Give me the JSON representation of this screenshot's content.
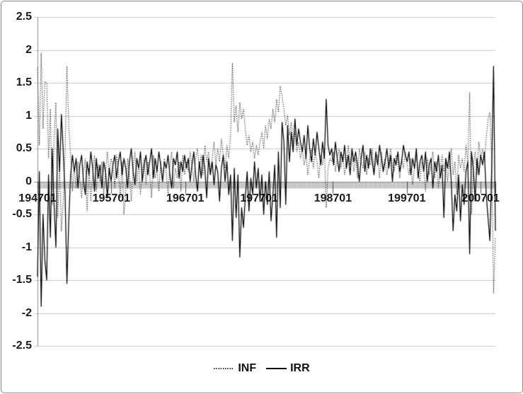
{
  "figure": {
    "background": "#ffffff",
    "border_color": "#8c8c8c"
  },
  "chart_data": {
    "type": "line",
    "title": "",
    "xlabel": "",
    "ylabel": "",
    "ylim": [
      -2.5,
      2.5
    ],
    "y_tick_step": 0.5,
    "grid": "horizontal",
    "y_tick_labels": [
      "2.5",
      "2",
      "1.5",
      "1",
      "0.5",
      "0",
      "-0.5",
      "-1",
      "-1.5",
      "-2",
      "-2.5"
    ],
    "y_tick_values": [
      2.5,
      2,
      1.5,
      1,
      0.5,
      0,
      -0.5,
      -1,
      -1.5,
      -2,
      -2.5
    ],
    "x_tick_labels": [
      "194701",
      "195701",
      "196701",
      "197701",
      "198701",
      "199701",
      "200701"
    ],
    "x_tick_months": [
      0,
      120,
      240,
      360,
      480,
      600,
      720
    ],
    "x_total_months": 744,
    "colors": {
      "gridline": "#c9c9c9",
      "zero_axis": "#8c8c8c",
      "tick_band": "#8a8a8a",
      "major_tick": "#4d4d4d",
      "series_line": "#000000"
    },
    "legend": {
      "position": "bottom",
      "entries": [
        {
          "name": "INF",
          "style": "dotted"
        },
        {
          "name": "IRR",
          "style": "solid"
        }
      ]
    },
    "series": [
      {
        "name": "INF",
        "line": "dotted",
        "color": "#1a1a1a",
        "values": [
          1.73,
          0.55,
          1.95,
          0.8,
          1.52,
          1.5,
          0.35,
          1.1,
          -0.35,
          0.65,
          1.2,
          -0.55,
          0.25,
          -0.76,
          -0.3,
          0.45,
          1.75,
          0.85,
          0.4,
          -0.15,
          0.2,
          -0.1,
          0.3,
          0.05,
          -0.25,
          0.15,
          0.35,
          -0.45,
          0.2,
          -0.3,
          0.1,
          0.4,
          -0.15,
          0.25,
          0,
          0.3,
          -0.2,
          0.15,
          0.45,
          0.1,
          0.35,
          0.25,
          -0.1,
          0.4,
          0.15,
          -0.25,
          0.3,
          -0.5,
          -0.15,
          0.35,
          0.1,
          -0.3,
          0.2,
          0.45,
          0,
          0.25,
          -0.2,
          0.15,
          0.35,
          -0.05,
          0.3,
          0.1,
          -0.25,
          0.4,
          0.05,
          0.2,
          -0.15,
          0.3,
          0,
          0.35,
          0.15,
          -0.2,
          0.25,
          0.45,
          -0.1,
          0.2,
          0.05,
          0.3,
          -0.15,
          0.4,
          0.1,
          0.3,
          0.15,
          0.45,
          0.25,
          0,
          0.35,
          0.5,
          0.2,
          0.4,
          0.1,
          0.55,
          0.3,
          0.45,
          0.15,
          0.35,
          0.6,
          0.25,
          0.5,
          0.3,
          0.65,
          0.4,
          0.2,
          0.55,
          0.35,
          0.7,
          1.8,
          0.9,
          1.15,
          0.75,
          1.2,
          0.95,
          1.1,
          0.8,
          0.55,
          0.7,
          0.45,
          0.6,
          0.35,
          0.55,
          0.4,
          0.6,
          0.75,
          0.5,
          0.85,
          0.65,
          0.95,
          0.8,
          1.1,
          0.9,
          1.25,
          1.05,
          1.45,
          1.3,
          1.1,
          0.85,
          1,
          0.7,
          0.9,
          0.55,
          0.75,
          0.45,
          0.6,
          0.35,
          0.5,
          0.25,
          0.4,
          0.1,
          0.35,
          0.5,
          0.2,
          0.45,
          0.3,
          0.05,
          0.4,
          0.25,
          0.5,
          -0.4,
          0.2,
          0.35,
          0.3,
          0.45,
          0.15,
          0.35,
          0.5,
          0.2,
          0.4,
          0.1,
          0.3,
          0.55,
          0.25,
          0.45,
          0.15,
          0.35,
          0.05,
          0.5,
          0.3,
          0.2,
          0.45,
          0.1,
          0.35,
          0.25,
          0.5,
          0.15,
          0.3,
          0.4,
          0.05,
          0.45,
          0.2,
          0.35,
          0.1,
          0.3,
          0.5,
          0.25,
          0.15,
          0.4,
          0.3,
          0.05,
          0.35,
          0.2,
          0.45,
          0.25,
          0.1,
          0.35,
          -0.05,
          0.2,
          0.4,
          0.15,
          0,
          0.3,
          0.2,
          -0.15,
          0.35,
          0.1,
          0.25,
          0.45,
          0.05,
          0.3,
          -0.1,
          0.2,
          0.4,
          0.15,
          0.35,
          0,
          0.25,
          0.5,
          0.1,
          0.3,
          -0.2,
          0.4,
          0.2,
          0.35,
          0.15,
          0.55,
          0.3,
          1.35,
          -0.5,
          0.25,
          0.45,
          0.1,
          0.6,
          0.35,
          0.5,
          0.3,
          0.65,
          0.95,
          1.05,
          0.35,
          -1.7,
          -0.85
        ]
      },
      {
        "name": "IRR",
        "line": "solid",
        "color": "#000000",
        "values": [
          -1.45,
          0.15,
          -1.9,
          -0.5,
          -1.2,
          -1.5,
          0.1,
          -0.85,
          0.5,
          -0.35,
          -1,
          0.8,
          0.15,
          1.02,
          0.45,
          -0.2,
          -1.55,
          -0.6,
          0.1,
          0.4,
          0.15,
          0.35,
          -0.1,
          0.25,
          0.4,
          0,
          -0.2,
          0.3,
          0.1,
          0.45,
          0.2,
          -0.15,
          0.35,
          0.05,
          0.25,
          -0.1,
          0.3,
          0.15,
          -0.25,
          0.2,
          0,
          0.25,
          0.4,
          0.05,
          0.3,
          0.45,
          0.1,
          0.35,
          0.2,
          -0.1,
          0.3,
          0.5,
          0.15,
          -0.05,
          0.35,
          0.2,
          0.45,
          0,
          0.25,
          0.4,
          0.1,
          0.3,
          0.5,
          0.05,
          0.35,
          0.15,
          0.45,
          0.25,
          0,
          0.3,
          0.2,
          0.4,
          0.1,
          -0.1,
          0.35,
          0.25,
          0.45,
          0.05,
          0.3,
          0.15,
          0.4,
          0.2,
          0.35,
          0,
          0.25,
          0.45,
          0.1,
          -0.15,
          0.3,
          0.05,
          0.4,
          0.2,
          -0.25,
          0.35,
          0.1,
          0.3,
          -0.05,
          0.25,
          0.15,
          -0.3,
          0.2,
          0.4,
          0,
          0.3,
          -0.2,
          0.1,
          -0.9,
          0.2,
          -0.55,
          0.1,
          -1.15,
          -0.4,
          -0.7,
          -0.25,
          0.15,
          -0.45,
          0.05,
          -0.2,
          0.3,
          -0.1,
          0.2,
          -0.3,
          0.1,
          -0.5,
          0,
          -0.35,
          0.15,
          -0.6,
          -0.2,
          0.25,
          -0.85,
          0.45,
          -0.4,
          0.9,
          0.6,
          -0.35,
          0.85,
          0.3,
          0.75,
          0.45,
          0.95,
          0.55,
          0.8,
          0.6,
          0.45,
          0.7,
          0.35,
          0.85,
          0.5,
          0.3,
          0.65,
          0.4,
          0.75,
          0.5,
          0.25,
          0.6,
          0.35,
          1.25,
          0.55,
          0.4,
          0.5,
          0.25,
          0.6,
          0.35,
          0.15,
          0.45,
          0.3,
          0.55,
          0.2,
          0.4,
          0.1,
          0.5,
          0.3,
          0.45,
          0.25,
          0,
          0.35,
          0.55,
          0.15,
          0.4,
          0.2,
          0.5,
          0.3,
          0.1,
          0.45,
          0.25,
          0.55,
          0.35,
          0.15,
          0.3,
          0.5,
          0.2,
          0.4,
          0,
          0.35,
          0.25,
          0.45,
          0.15,
          0.3,
          0.55,
          0.4,
          0.3,
          0.45,
          0.1,
          0.35,
          0.2,
          0.5,
          0.05,
          0.3,
          0.4,
          0.15,
          0.45,
          0,
          0.25,
          0.35,
          -0.1,
          0.3,
          0.15,
          0.4,
          0.05,
          0.25,
          -0.55,
          0.35,
          0.2,
          0.45,
          0,
          -0.75,
          -0.2,
          -0.45,
          0.1,
          -0.6,
          -0.05,
          -0.35,
          0.15,
          0.3,
          -1.1,
          0.45,
          0.2,
          -0.3,
          0.35,
          0.1,
          0.4,
          0.25,
          0.45,
          -0.2,
          -0.55,
          -0.9,
          0.2,
          1.75,
          -0.75
        ]
      }
    ]
  }
}
